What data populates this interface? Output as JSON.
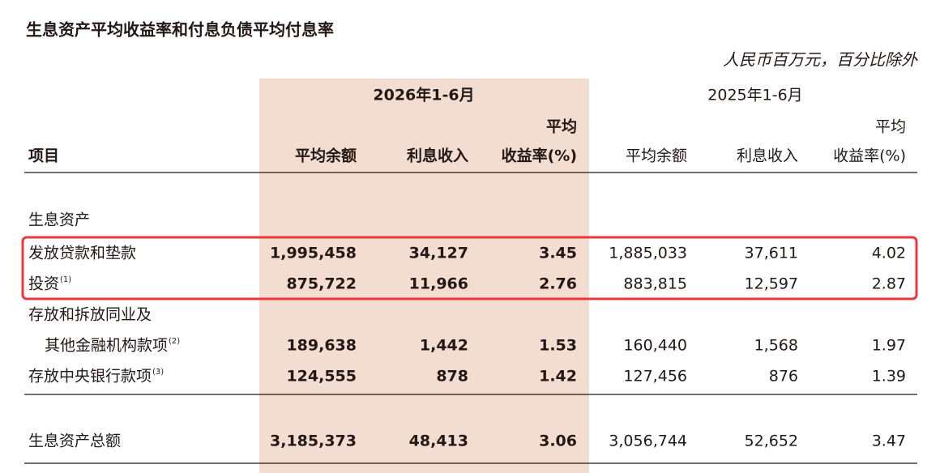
{
  "title": "生息资产平均收益率和付息负债平均付息率",
  "unit_note": "人民币百万元，百分比除外",
  "table": {
    "periods": [
      "2026年1-6月",
      "2025年1-6月"
    ],
    "item_header": "项目",
    "columns": [
      [
        "平均余额"
      ],
      [
        "利息收入"
      ],
      [
        "平均",
        "收益率(%)"
      ],
      [
        "平均余额"
      ],
      [
        "利息收入"
      ],
      [
        "平均",
        "收益率(%)"
      ]
    ],
    "section": "生息资产",
    "rows": [
      {
        "label": [
          "发放贷款和垫款"
        ],
        "values": [
          "1,995,458",
          "34,127",
          "3.45",
          "1,885,033",
          "37,611",
          "4.02"
        ]
      },
      {
        "label": [
          "投资"
        ],
        "note": "(1)",
        "values": [
          "875,722",
          "11,966",
          "2.76",
          "883,815",
          "12,597",
          "2.87"
        ]
      },
      {
        "label": [
          "存放和拆放同业及",
          "其他金融机构款项"
        ],
        "note": "(2)",
        "values": [
          "189,638",
          "1,442",
          "1.53",
          "160,440",
          "1,568",
          "1.97"
        ]
      },
      {
        "label": [
          "存放中央银行款项"
        ],
        "note": "(3)",
        "values": [
          "124,555",
          "878",
          "1.42",
          "127,456",
          "876",
          "1.39"
        ]
      }
    ],
    "total": {
      "label": [
        "生息资产总额"
      ],
      "values": [
        "3,185,373",
        "48,413",
        "3.06",
        "3,056,744",
        "52,652",
        "3.47"
      ]
    }
  }
}
